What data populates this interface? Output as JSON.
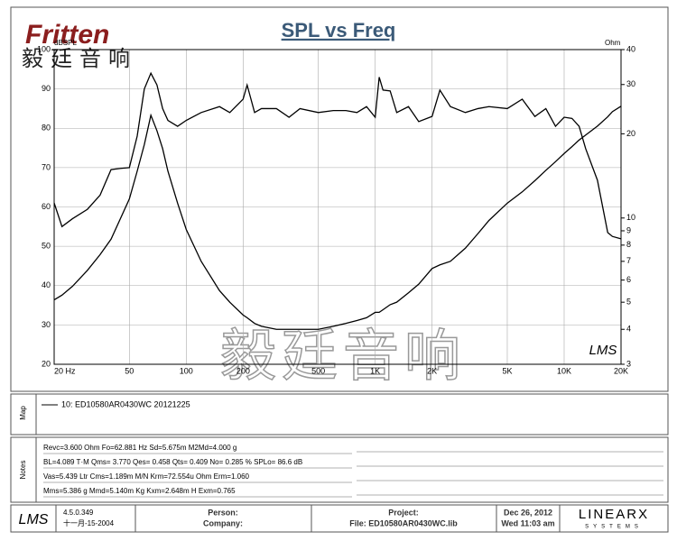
{
  "header": {
    "logo": "Fritten",
    "logo_chinese": "毅廷音响"
  },
  "watermark": "毅廷音响",
  "chart_logo": "LMS",
  "chart_data": {
    "type": "line",
    "title": "SPL vs Freq",
    "y_label": "dBSPL",
    "y2_label": "Ohm",
    "x": [
      20,
      22,
      25,
      30,
      35,
      40,
      45,
      50,
      55,
      60,
      65,
      70,
      75,
      80,
      90,
      100,
      120,
      150,
      170,
      200,
      210,
      230,
      250,
      300,
      350,
      400,
      500,
      600,
      700,
      800,
      900,
      1000,
      1050,
      1100,
      1200,
      1300,
      1500,
      1700,
      2000,
      2200,
      2500,
      3000,
      3500,
      4000,
      5000,
      6000,
      7000,
      8000,
      9000,
      10000,
      11000,
      12000,
      13000,
      15000,
      17000,
      18000,
      20000
    ],
    "xscale": "log",
    "xlim": [
      20,
      20000
    ],
    "xticks": [
      {
        "value": 20,
        "label": "20 Hz"
      },
      50,
      100,
      200,
      500,
      {
        "value": 1000,
        "label": "1K"
      },
      {
        "value": 2000,
        "label": "2K"
      },
      {
        "value": 5000,
        "label": "5K"
      },
      {
        "value": 10000,
        "label": "10K"
      },
      {
        "value": 20000,
        "label": "20K"
      }
    ],
    "ylim": [
      20,
      100
    ],
    "yticks": [
      20,
      30,
      40,
      50,
      60,
      70,
      80,
      90,
      100
    ],
    "y2scale": "log",
    "y2lim": [
      3,
      40
    ],
    "y2ticks": [
      3,
      4,
      5,
      6,
      7,
      8,
      9,
      10,
      20,
      30,
      40
    ],
    "grid": true,
    "series": [
      {
        "color": "#000000",
        "values": [
          61,
          55,
          57,
          59.4,
          63,
          69.5,
          69.8,
          70,
          78,
          90,
          94,
          91,
          85,
          82,
          80.5,
          82,
          84,
          85.5,
          84,
          87.4,
          91,
          84,
          85,
          85,
          82.8,
          85,
          84,
          84.5,
          84.5,
          84,
          85.5,
          82.8,
          93,
          89.7,
          89.5,
          84,
          85.5,
          81.7,
          83,
          89.7,
          85.5,
          84,
          85,
          85.5,
          85,
          87.4,
          83,
          85,
          80.5,
          82.8,
          82.5,
          80.5,
          74.8,
          66.8,
          53.5,
          52.5,
          51.9
        ]
      },
      {
        "color": "#000000",
        "axis": "y2",
        "values": [
          5.1,
          5.3,
          5.7,
          6.5,
          7.4,
          8.4,
          10,
          11.7,
          14.7,
          18.3,
          23.3,
          20.5,
          17.7,
          14.7,
          11.3,
          9.1,
          7.0,
          5.5,
          5.0,
          4.5,
          4.4,
          4.2,
          4.1,
          4.0,
          4.0,
          4.0,
          4.0,
          4.1,
          4.2,
          4.3,
          4.4,
          4.6,
          4.6,
          4.7,
          4.9,
          5.0,
          5.4,
          5.8,
          6.6,
          6.8,
          7.0,
          7.8,
          8.8,
          9.8,
          11.3,
          12.4,
          13.6,
          14.8,
          15.9,
          17.0,
          18.0,
          19.0,
          19.8,
          21.3,
          23,
          24,
          25.1
        ]
      }
    ]
  },
  "map": {
    "label": "Map",
    "entry": "10: ED10580AR0430WC 20121225"
  },
  "notes": {
    "label": "Notes",
    "lines": [
      "Revc=3.600 Ohm  Fo=62.881 Hz  Sd=5.675m M2Md=4.000 g",
      "BL=4.089 T·M  Qms= 3.770  Qes= 0.458  Qts= 0.409  No= 0.285 %  SPLo= 86.6 dB",
      "Vas=5.439 Ltr  Cms=1.189m M/N  Krm=72.554u Ohm  Erm=1.060",
      "Mms=5.386 g  Mmd=5.140m Kg  Kxm=2.648m H  Exm=0.765"
    ]
  },
  "footer": {
    "logo": "LMS",
    "version": "4.5.0.349",
    "build_date": "十一月-15-2004",
    "person": "Person:",
    "company": "Company:",
    "project": "Project:",
    "file": "File: ED10580AR0430WC.lib",
    "date": "Dec 26, 2012",
    "time": "Wed 11:03 am",
    "brand": "LINEARX",
    "brand_sub": "SYSTEMS"
  }
}
